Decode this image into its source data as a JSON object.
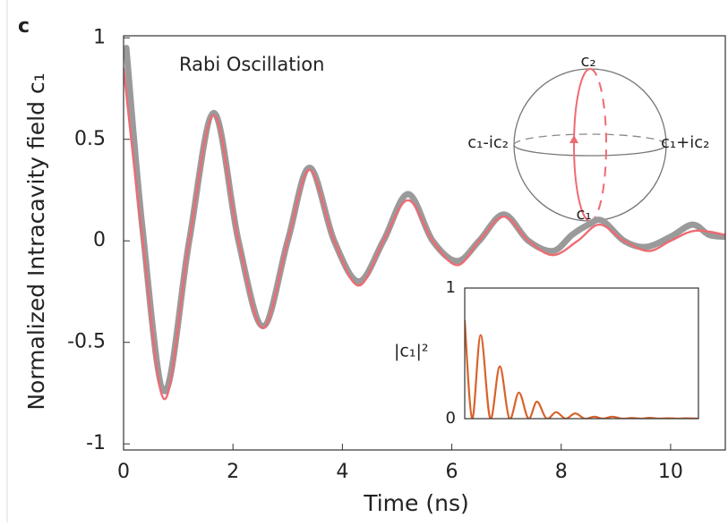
{
  "chart_data": [
    {
      "type": "line",
      "panel_label": "c",
      "annotation": "Rabi Oscillation",
      "x_label": "Time (ns)",
      "y_label": "Normalized Intracavity field c₁",
      "xlim": [
        0,
        11
      ],
      "ylim": [
        -1.03,
        1.01
      ],
      "xticks": [
        0,
        2,
        4,
        6,
        8,
        10
      ],
      "yticks": [
        -1,
        -0.5,
        0,
        0.5,
        1
      ],
      "sphere_labels": [
        "c₂",
        "c₁-ic₂",
        "c₁+ic₂",
        "c₁"
      ],
      "series": [
        {
          "color": "#9a9a9a",
          "x": [
            0.05,
            0.35,
            0.75,
            1.2,
            1.65,
            2.1,
            2.55,
            3.0,
            3.4,
            3.85,
            4.3,
            4.75,
            5.2,
            5.65,
            6.1,
            6.5,
            6.95,
            7.4,
            7.85,
            8.2,
            8.5,
            8.75,
            9.15,
            9.55,
            10.0,
            10.4,
            10.7,
            11
          ],
          "values": [
            0.95,
            0.05,
            -0.74,
            0.0,
            0.63,
            0.0,
            -0.42,
            0.0,
            0.36,
            0.0,
            -0.2,
            0.0,
            0.23,
            0.0,
            -0.1,
            0.0,
            0.13,
            0.0,
            -0.05,
            0.03,
            0.08,
            0.1,
            0.0,
            -0.03,
            0.02,
            0.08,
            0.03,
            0.02
          ]
        },
        {
          "color": "#ee6b73",
          "x": [
            0,
            0.35,
            0.75,
            1.2,
            1.65,
            2.1,
            2.55,
            3.0,
            3.4,
            3.85,
            4.3,
            4.75,
            5.2,
            5.65,
            6.1,
            6.5,
            6.95,
            7.4,
            7.85,
            8.3,
            8.7,
            9.15,
            9.6,
            10.0,
            10.45,
            11
          ],
          "values": [
            0.85,
            0,
            -0.78,
            0,
            0.62,
            0,
            -0.43,
            0,
            0.35,
            0,
            -0.22,
            0,
            0.2,
            0,
            -0.12,
            0,
            0.12,
            0,
            -0.07,
            0,
            0.08,
            0,
            -0.05,
            0,
            0.05,
            0.03
          ]
        }
      ]
    },
    {
      "type": "line",
      "y_label": "|c₁|²",
      "xlim": [
        0,
        11
      ],
      "ylim": [
        0,
        1
      ],
      "yticks": [
        0,
        1
      ],
      "series": [
        {
          "color": "#d9622b",
          "x": [
            0,
            0.35,
            0.75,
            1.2,
            1.65,
            2.1,
            2.55,
            3.0,
            3.4,
            3.85,
            4.3,
            4.75,
            5.2,
            5.65,
            6.1,
            6.5,
            6.95,
            7.4,
            7.85,
            8.3,
            8.7,
            9.15,
            9.6,
            10.0,
            10.45,
            11
          ],
          "values": [
            0.75,
            0,
            0.64,
            0,
            0.4,
            0,
            0.2,
            0,
            0.13,
            0,
            0.05,
            0,
            0.04,
            0,
            0.015,
            0,
            0.015,
            0,
            0.005,
            0,
            0.006,
            0,
            0.003,
            0,
            0.003,
            0
          ]
        }
      ]
    }
  ]
}
